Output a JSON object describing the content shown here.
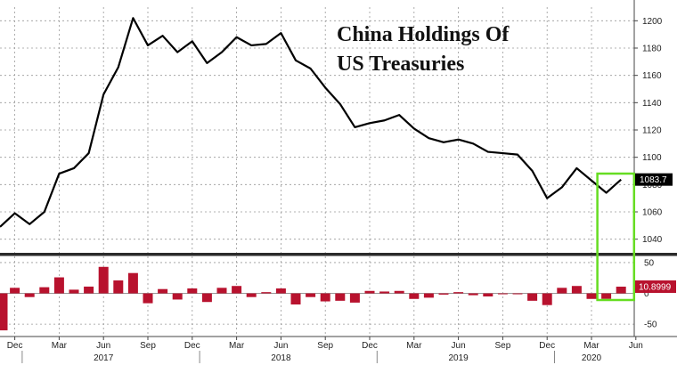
{
  "chart_data": [
    {
      "type": "line",
      "title": "China Holdings Of",
      "subtitle": "US Treasuries",
      "xlabel": "",
      "ylabel": "",
      "x": [
        "2016-11",
        "2016-12",
        "2017-01",
        "2017-02",
        "2017-03",
        "2017-04",
        "2017-05",
        "2017-06",
        "2017-07",
        "2017-08",
        "2017-09",
        "2017-10",
        "2017-11",
        "2017-12",
        "2018-01",
        "2018-02",
        "2018-03",
        "2018-04",
        "2018-05",
        "2018-06",
        "2018-07",
        "2018-08",
        "2018-09",
        "2018-10",
        "2018-11",
        "2018-12",
        "2019-01",
        "2019-02",
        "2019-03",
        "2019-04",
        "2019-05",
        "2019-06",
        "2019-07",
        "2019-08",
        "2019-09",
        "2019-10",
        "2019-11",
        "2019-12",
        "2020-01",
        "2020-02",
        "2020-03",
        "2020-04",
        "2020-05"
      ],
      "series": [
        {
          "values": [
            1049,
            1059,
            1051,
            1060,
            1088,
            1092,
            1103,
            1146,
            1166,
            1202,
            1182,
            1189,
            1177,
            1185,
            1169,
            1177,
            1188,
            1182,
            1183,
            1191,
            1171,
            1165,
            1151,
            1139,
            1122,
            1125,
            1127,
            1131,
            1121,
            1114,
            1111,
            1113,
            1110,
            1104,
            1103,
            1102,
            1090,
            1070,
            1078,
            1092,
            1083,
            1074,
            1083.7
          ]
        }
      ],
      "ylim": [
        1030,
        1210
      ],
      "yticks": [
        1040,
        1060,
        1080,
        1100,
        1120,
        1140,
        1160,
        1180,
        1200
      ],
      "last_value_label": "1083.7",
      "line_color": "#000000",
      "label_bg": "#000000",
      "grid": true,
      "y_axis_side": "right"
    },
    {
      "type": "bar",
      "x": [
        "2016-11",
        "2016-12",
        "2017-01",
        "2017-02",
        "2017-03",
        "2017-04",
        "2017-05",
        "2017-06",
        "2017-07",
        "2017-08",
        "2017-09",
        "2017-10",
        "2017-11",
        "2017-12",
        "2018-01",
        "2018-02",
        "2018-03",
        "2018-04",
        "2018-05",
        "2018-06",
        "2018-07",
        "2018-08",
        "2018-09",
        "2018-10",
        "2018-11",
        "2018-12",
        "2019-01",
        "2019-02",
        "2019-03",
        "2019-04",
        "2019-05",
        "2019-06",
        "2019-07",
        "2019-08",
        "2019-09",
        "2019-10",
        "2019-11",
        "2019-12",
        "2020-01",
        "2020-02",
        "2020-03",
        "2020-04",
        "2020-05"
      ],
      "values": [
        -60,
        9,
        -6,
        10,
        26,
        6,
        11,
        43,
        21,
        33,
        -16,
        7,
        -10,
        8,
        -14,
        9,
        12,
        -6,
        2,
        8,
        -18,
        -6,
        -13,
        -12,
        -15,
        4,
        3,
        4,
        -9,
        -7,
        -2,
        2,
        -3,
        -5,
        -1,
        -1,
        -12,
        -19,
        9,
        12,
        -9,
        -9,
        10.8999
      ],
      "ylim": [
        -70,
        60
      ],
      "yticks": [
        -50,
        0,
        50
      ],
      "last_value_label": "10.8999",
      "bar_color": "#b8122e",
      "grid": true,
      "y_axis_side": "right"
    }
  ],
  "x_axis": {
    "month_ticks": [
      {
        "x": "2016-12",
        "label": "Dec"
      },
      {
        "x": "2017-03",
        "label": "Mar"
      },
      {
        "x": "2017-06",
        "label": "Jun"
      },
      {
        "x": "2017-09",
        "label": "Sep"
      },
      {
        "x": "2017-12",
        "label": "Dec"
      },
      {
        "x": "2018-03",
        "label": "Mar"
      },
      {
        "x": "2018-06",
        "label": "Jun"
      },
      {
        "x": "2018-09",
        "label": "Sep"
      },
      {
        "x": "2018-12",
        "label": "Dec"
      },
      {
        "x": "2019-03",
        "label": "Mar"
      },
      {
        "x": "2019-06",
        "label": "Jun"
      },
      {
        "x": "2019-09",
        "label": "Sep"
      },
      {
        "x": "2019-12",
        "label": "Dec"
      },
      {
        "x": "2020-03",
        "label": "Mar"
      },
      {
        "x": "2020-06",
        "label": "Jun"
      }
    ],
    "year_ticks": [
      {
        "x": "2017-06",
        "label": "2017"
      },
      {
        "x": "2018-06",
        "label": "2018"
      },
      {
        "x": "2019-06",
        "label": "2019"
      },
      {
        "x": "2020-03",
        "label": "2020"
      }
    ]
  },
  "highlight": {
    "from": "2020-04",
    "to": "2020-06",
    "color": "#66dd22"
  }
}
